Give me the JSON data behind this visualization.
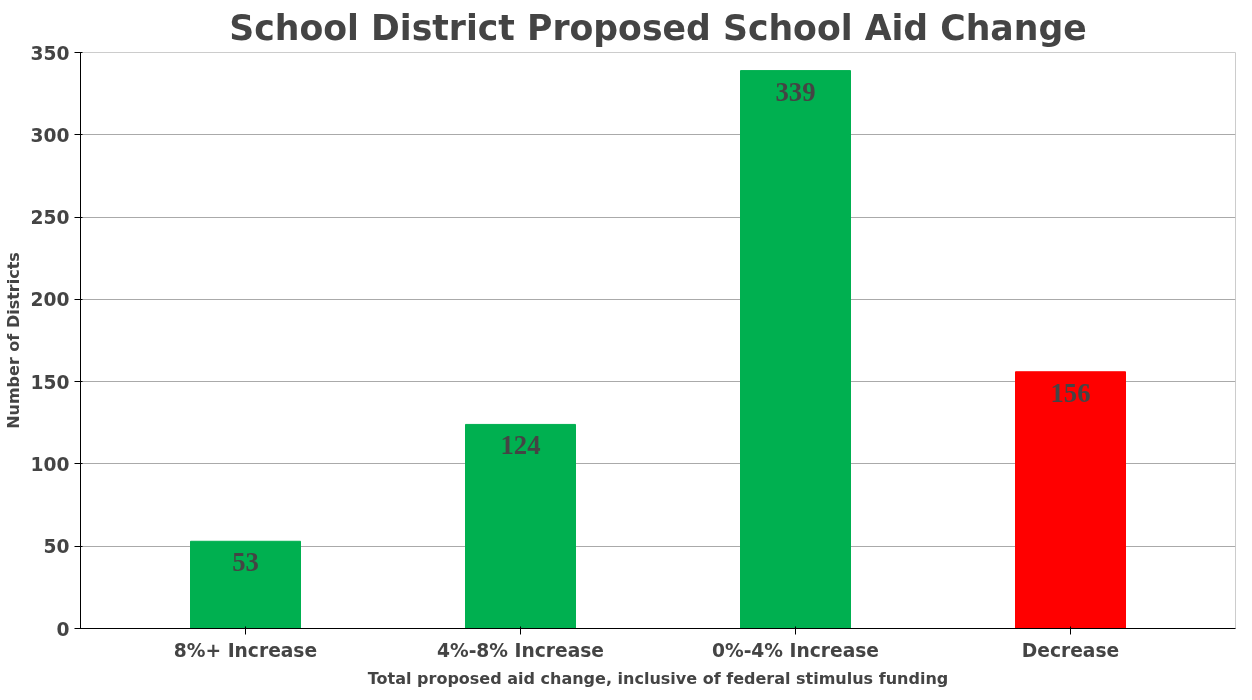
{
  "chart_data": {
    "type": "bar",
    "title": "School District Proposed School Aid Change",
    "xlabel": "Total proposed aid change, inclusive of federal stimulus funding",
    "ylabel": "Number of Districts",
    "categories": [
      "8%+ Increase",
      "4%-8% Increase",
      "0%-4% Increase",
      "Decrease"
    ],
    "values": [
      53,
      124,
      339,
      156
    ],
    "colors": [
      "#00b050",
      "#00b050",
      "#00b050",
      "#ff0000"
    ],
    "ylim": [
      0,
      350
    ],
    "yticks": [
      0,
      50,
      100,
      150,
      200,
      250,
      300,
      350
    ],
    "grid": "y",
    "data_labels": true
  }
}
